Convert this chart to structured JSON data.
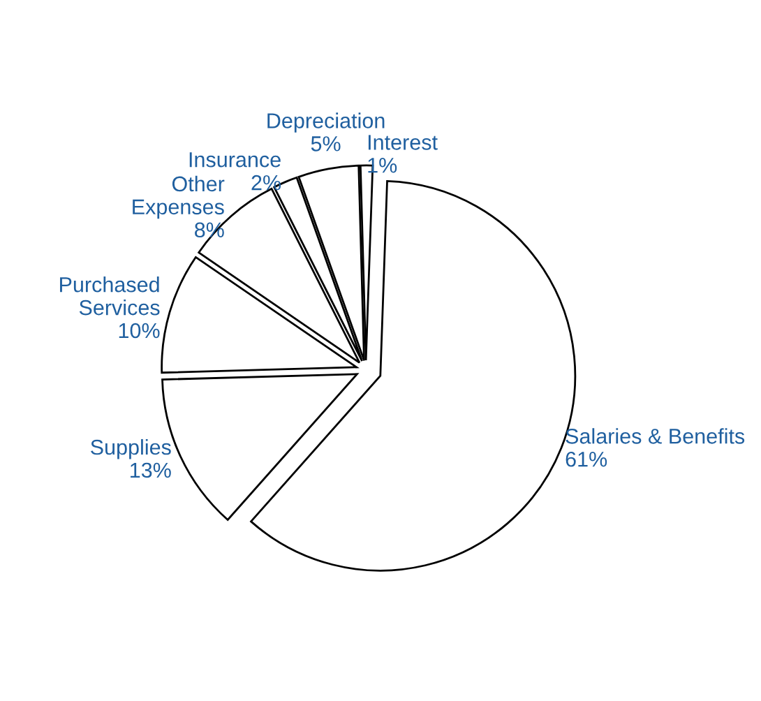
{
  "chart_data": {
    "type": "pie",
    "categories": [
      "Salaries & Benefits",
      "Supplies",
      "Purchased Services",
      "Other Expenses",
      "Insurance",
      "Depreciation",
      "Interest"
    ],
    "values": [
      61,
      13,
      10,
      8,
      2,
      5,
      1
    ],
    "value_labels": [
      "61%",
      "13%",
      "10%",
      "8%",
      "2%",
      "5%",
      "1%"
    ],
    "colors": [
      "#ffffff",
      "#ffffff",
      "#ffffff",
      "#ffffff",
      "#ffffff",
      "#ffffff",
      "#ffffff"
    ]
  }
}
